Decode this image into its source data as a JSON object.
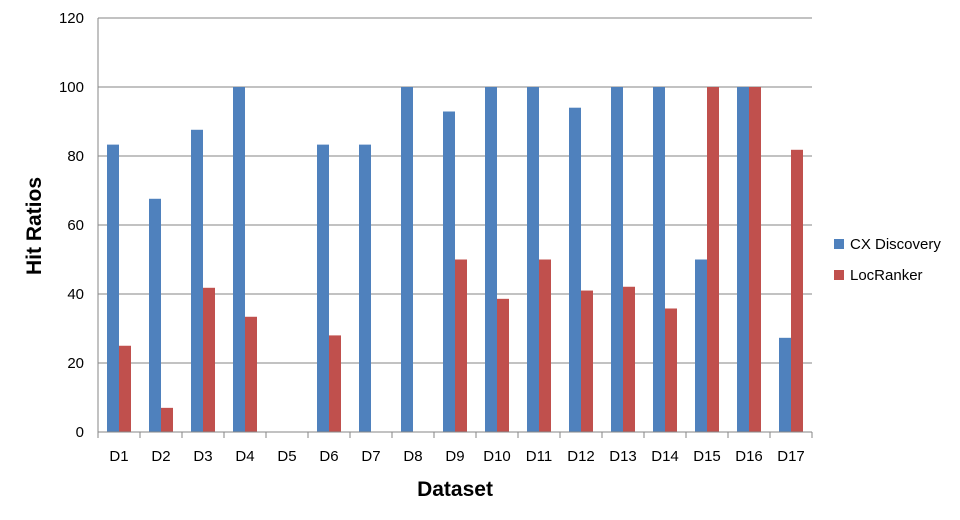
{
  "chart_data": {
    "type": "bar",
    "title": "",
    "xlabel": "Dataset",
    "ylabel": "Hit Ratios",
    "ylim": [
      0,
      120
    ],
    "yticks": [
      0,
      20,
      40,
      60,
      80,
      100,
      120
    ],
    "grid": true,
    "legend_position": "right",
    "categories": [
      "D1",
      "D2",
      "D3",
      "D4",
      "D5",
      "D6",
      "D7",
      "D8",
      "D9",
      "D10",
      "D11",
      "D12",
      "D13",
      "D14",
      "D15",
      "D16",
      "D17"
    ],
    "series": [
      {
        "name": "CX Discovery",
        "color": "#4f81bd",
        "values": [
          83.3,
          67.6,
          87.6,
          100,
          0,
          83.3,
          83.3,
          100,
          92.9,
          100,
          100,
          94,
          100,
          100,
          50,
          100,
          27.3
        ]
      },
      {
        "name": "LocRanker",
        "color": "#c0504d",
        "values": [
          25,
          7,
          41.8,
          33.4,
          0,
          28,
          0,
          0,
          50,
          38.6,
          50,
          41,
          42.1,
          35.8,
          100,
          100,
          81.8
        ]
      }
    ]
  }
}
